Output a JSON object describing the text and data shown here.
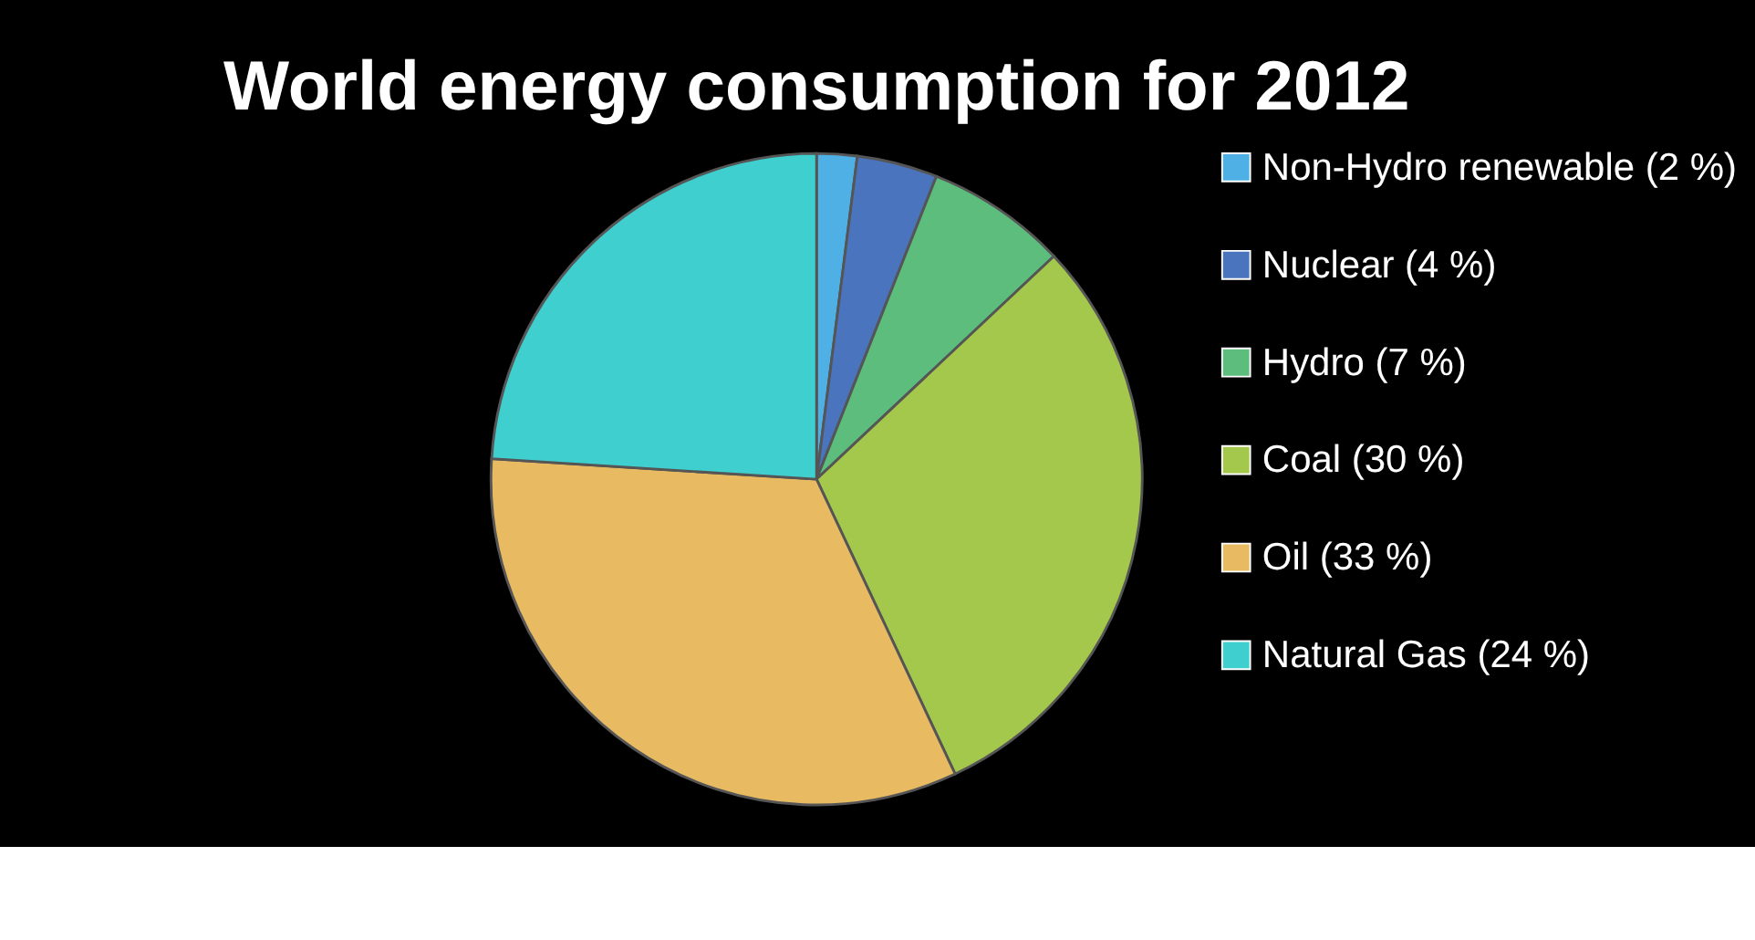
{
  "chart_data": {
    "type": "pie",
    "title": "World energy consumption for 2012",
    "categories": [
      "Non-Hydro renewable (2 %)",
      "Nuclear (4 %)",
      "Hydro (7 %)",
      "Coal (30 %)",
      "Oil (33 %)",
      "Natural Gas (24 %)"
    ],
    "values": [
      2,
      4,
      7,
      30,
      33,
      24
    ],
    "colors": [
      "#4fb0e6",
      "#4a74bd",
      "#5cbd7c",
      "#a3c84c",
      "#e8bb62",
      "#3fcfcf"
    ],
    "legend": "right"
  }
}
